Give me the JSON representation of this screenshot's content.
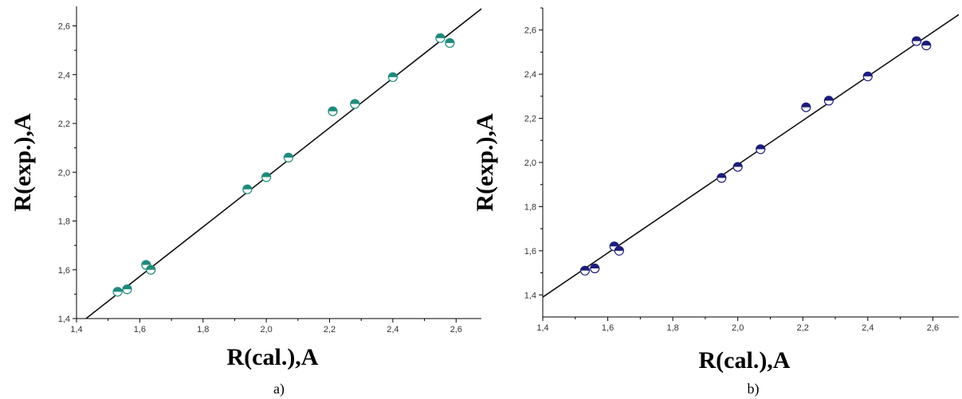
{
  "charts": [
    {
      "id": "a",
      "caption": "a)",
      "xlabel": "R(cal.),A",
      "ylabel": "R(exp.),A",
      "xticks": [
        "1,4",
        "1,6",
        "1,8",
        "2,0",
        "2,2",
        "2,4",
        "2,6"
      ],
      "yticks": [
        "1,4",
        "1,6",
        "1,8",
        "2,0",
        "2,2",
        "2,4",
        "2,6"
      ],
      "marker_color": "#1f8a7a"
    },
    {
      "id": "b",
      "caption": "b)",
      "xlabel": "R(cal.),A",
      "ylabel": "R(exp.),A",
      "xticks": [
        "1,4",
        "1,6",
        "1,8",
        "2,0",
        "2,2",
        "2,4",
        "2,6"
      ],
      "yticks": [
        "1,4",
        "1,6",
        "1,8",
        "2,0",
        "2,2",
        "2,4",
        "2,6"
      ],
      "marker_color": "#1c1c7a"
    }
  ],
  "chart_data": [
    {
      "type": "scatter",
      "title": "",
      "xlabel": "R(cal.),A",
      "ylabel": "R(exp.),A",
      "xlim": [
        1.4,
        2.68
      ],
      "ylim": [
        1.4,
        2.68
      ],
      "grid": false,
      "points": [
        {
          "x": 1.53,
          "y": 1.51
        },
        {
          "x": 1.56,
          "y": 1.52
        },
        {
          "x": 1.62,
          "y": 1.62
        },
        {
          "x": 1.635,
          "y": 1.6
        },
        {
          "x": 1.94,
          "y": 1.93
        },
        {
          "x": 2.0,
          "y": 1.98
        },
        {
          "x": 2.07,
          "y": 2.06
        },
        {
          "x": 2.21,
          "y": 2.25
        },
        {
          "x": 2.28,
          "y": 2.28
        },
        {
          "x": 2.4,
          "y": 2.39
        },
        {
          "x": 2.55,
          "y": 2.55
        },
        {
          "x": 2.58,
          "y": 2.53
        }
      ],
      "fit_line": {
        "x": [
          1.43,
          2.68
        ],
        "y": [
          1.4,
          2.67
        ]
      }
    },
    {
      "type": "scatter",
      "title": "",
      "xlabel": "R(cal.),A",
      "ylabel": "R(exp.),A",
      "xlim": [
        1.4,
        2.68
      ],
      "ylim": [
        1.3,
        2.7
      ],
      "grid": false,
      "points": [
        {
          "x": 1.53,
          "y": 1.51
        },
        {
          "x": 1.56,
          "y": 1.52
        },
        {
          "x": 1.62,
          "y": 1.62
        },
        {
          "x": 1.635,
          "y": 1.6
        },
        {
          "x": 1.95,
          "y": 1.93
        },
        {
          "x": 2.0,
          "y": 1.98
        },
        {
          "x": 2.07,
          "y": 2.06
        },
        {
          "x": 2.21,
          "y": 2.25
        },
        {
          "x": 2.28,
          "y": 2.28
        },
        {
          "x": 2.4,
          "y": 2.39
        },
        {
          "x": 2.55,
          "y": 2.55
        },
        {
          "x": 2.58,
          "y": 2.53
        }
      ],
      "fit_line": {
        "x": [
          1.4,
          2.68
        ],
        "y": [
          1.39,
          2.67
        ]
      }
    }
  ]
}
